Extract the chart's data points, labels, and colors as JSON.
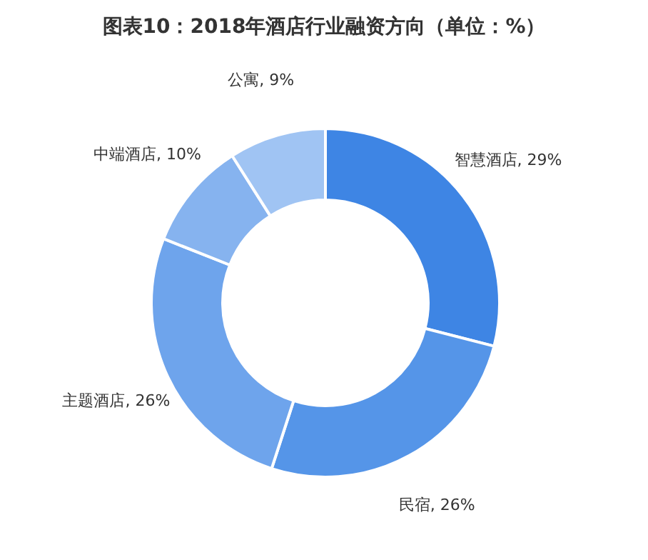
{
  "chart_data": {
    "type": "donut",
    "title": "图表10：2018年酒店行业融资方向（单位：%）",
    "categories": [
      "智慧酒店",
      "民宿",
      "主题酒店",
      "中端酒店",
      "公寓"
    ],
    "values": [
      29,
      26,
      26,
      10,
      9
    ],
    "value_labels": [
      "29%",
      "26%",
      "26%",
      "10%",
      "9%"
    ],
    "colors": [
      "#3e85e4",
      "#5595e8",
      "#6ea4ec",
      "#86b3ef",
      "#a0c4f3"
    ],
    "legend": false
  }
}
